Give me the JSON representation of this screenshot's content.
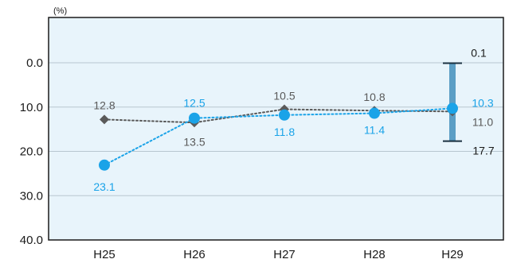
{
  "chart_data": {
    "type": "line",
    "unit_label": "(%)",
    "categories": [
      "H25",
      "H26",
      "H27",
      "H28",
      "H29"
    ],
    "y_ticks": [
      "0.0",
      "10.0",
      "20.0",
      "30.0",
      "40.0"
    ],
    "ylim": [
      0,
      40
    ],
    "y_inverted": true,
    "grid": true,
    "series": [
      {
        "color": "#5a5a5a",
        "marker": "diamond",
        "line_style": "dotted",
        "values": [
          12.8,
          13.5,
          10.5,
          10.8,
          11.0
        ],
        "labels": [
          "12.8",
          "13.5",
          "10.5",
          "10.8",
          "11.0"
        ]
      },
      {
        "color": "#1aa3e8",
        "marker": "circle",
        "line_style": "dotted",
        "values": [
          23.1,
          12.5,
          11.8,
          11.4,
          10.3
        ],
        "labels": [
          "23.1",
          "12.5",
          "11.8",
          "11.4",
          "10.3"
        ]
      }
    ],
    "range_bar": {
      "category": "H29",
      "low": 0.1,
      "high": 17.7,
      "low_label": "0.1",
      "high_label": "17.7",
      "color": "#5b9ec5"
    },
    "colors": {
      "plot_background": "#e8f4fb",
      "plot_border": "#1a1a1a",
      "gridline": "#b8c6d0"
    }
  }
}
